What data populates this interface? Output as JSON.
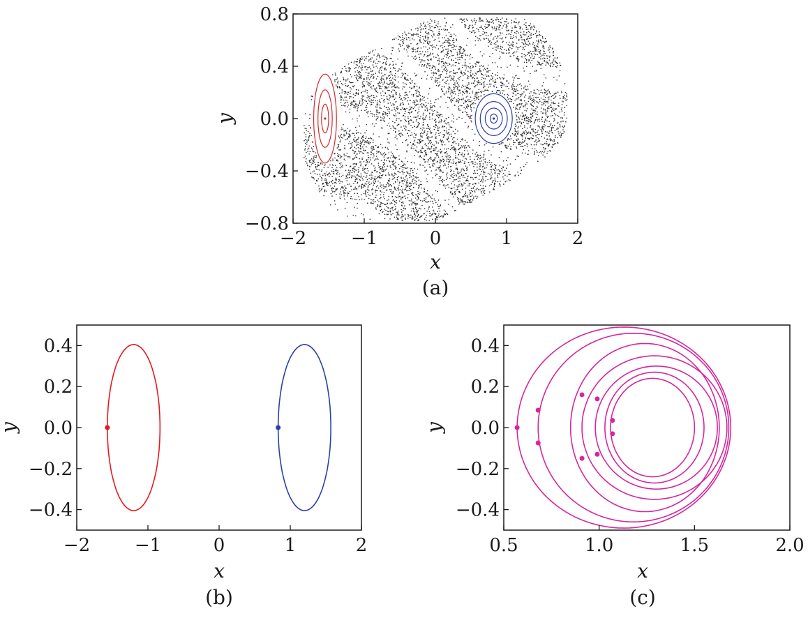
{
  "chart_data": [
    {
      "type": "scatter",
      "caption": "(a)",
      "xlabel": "x",
      "ylabel": "y",
      "xlim": [
        -2,
        2
      ],
      "ylim": [
        -0.8,
        0.8
      ],
      "xticks": [
        -2,
        -1,
        0,
        1,
        2
      ],
      "yticks": [
        -0.8,
        -0.4,
        0.0,
        0.4,
        0.8
      ],
      "xtick_labels": [
        "−2",
        "−1",
        "0",
        "1",
        "2"
      ],
      "ytick_labels": [
        "−0.8",
        "−0.4",
        "0.0",
        "0.4",
        "0.8"
      ],
      "grid": false,
      "series": [
        {
          "color": "#2b2b2b",
          "kind": "chaotic-sea points"
        },
        {
          "color": "#d62728",
          "kind": "island contours",
          "center": [
            -1.55,
            0.0
          ]
        },
        {
          "color": "#2c3ea8",
          "kind": "island contours",
          "center": [
            0.82,
            0.0
          ]
        }
      ]
    },
    {
      "type": "line",
      "caption": "(b)",
      "xlabel": "x",
      "ylabel": "y",
      "xlim": [
        -2,
        2
      ],
      "ylim": [
        -0.5,
        0.5
      ],
      "xticks": [
        -2,
        -1,
        0,
        1,
        2
      ],
      "yticks": [
        -0.4,
        -0.2,
        0.0,
        0.2,
        0.4
      ],
      "xtick_labels": [
        "−2",
        "−1",
        "0",
        "1",
        "2"
      ],
      "ytick_labels": [
        "−0.4",
        "−0.2",
        "0.0",
        "0.2",
        "0.4"
      ],
      "grid": false,
      "series": [
        {
          "color": "#e31a1c",
          "center": [
            -1.2,
            0.0
          ],
          "rx": 0.37,
          "ry": 0.405,
          "marker": [
            -1.57,
            0.0
          ]
        },
        {
          "color": "#2c3ea8",
          "center": [
            1.2,
            0.0
          ],
          "rx": 0.37,
          "ry": 0.405,
          "marker": [
            0.83,
            0.0
          ]
        }
      ]
    },
    {
      "type": "line",
      "caption": "(c)",
      "xlabel": "x",
      "ylabel": "y",
      "xlim": [
        0.5,
        2.0
      ],
      "ylim": [
        -0.5,
        0.5
      ],
      "xticks": [
        0.5,
        1.0,
        1.5,
        2.0
      ],
      "yticks": [
        -0.4,
        -0.2,
        0.0,
        0.2,
        0.4
      ],
      "xtick_labels": [
        "0.5",
        "1.0",
        "1.5",
        "2.0"
      ],
      "ytick_labels": [
        "−0.4",
        "−0.2",
        "0.0",
        "0.2",
        "0.4"
      ],
      "grid": false,
      "color": "#d4279e",
      "loops": [
        {
          "cx": 1.13,
          "rx": 0.56,
          "ry": 0.49
        },
        {
          "cx": 1.18,
          "rx": 0.5,
          "ry": 0.46
        },
        {
          "cx": 1.24,
          "rx": 0.39,
          "ry": 0.41
        },
        {
          "cx": 1.29,
          "rx": 0.38,
          "ry": 0.35
        },
        {
          "cx": 1.3,
          "rx": 0.32,
          "ry": 0.3
        },
        {
          "cx": 1.29,
          "rx": 0.26,
          "ry": 0.27
        },
        {
          "cx": 1.28,
          "rx": 0.22,
          "ry": 0.24
        }
      ],
      "markers": [
        [
          0.57,
          0.0
        ],
        [
          0.68,
          0.085
        ],
        [
          0.68,
          -0.075
        ],
        [
          0.91,
          0.16
        ],
        [
          0.91,
          -0.15
        ],
        [
          0.99,
          0.14
        ],
        [
          0.99,
          -0.13
        ],
        [
          1.07,
          0.035
        ],
        [
          1.07,
          -0.03
        ]
      ]
    }
  ]
}
